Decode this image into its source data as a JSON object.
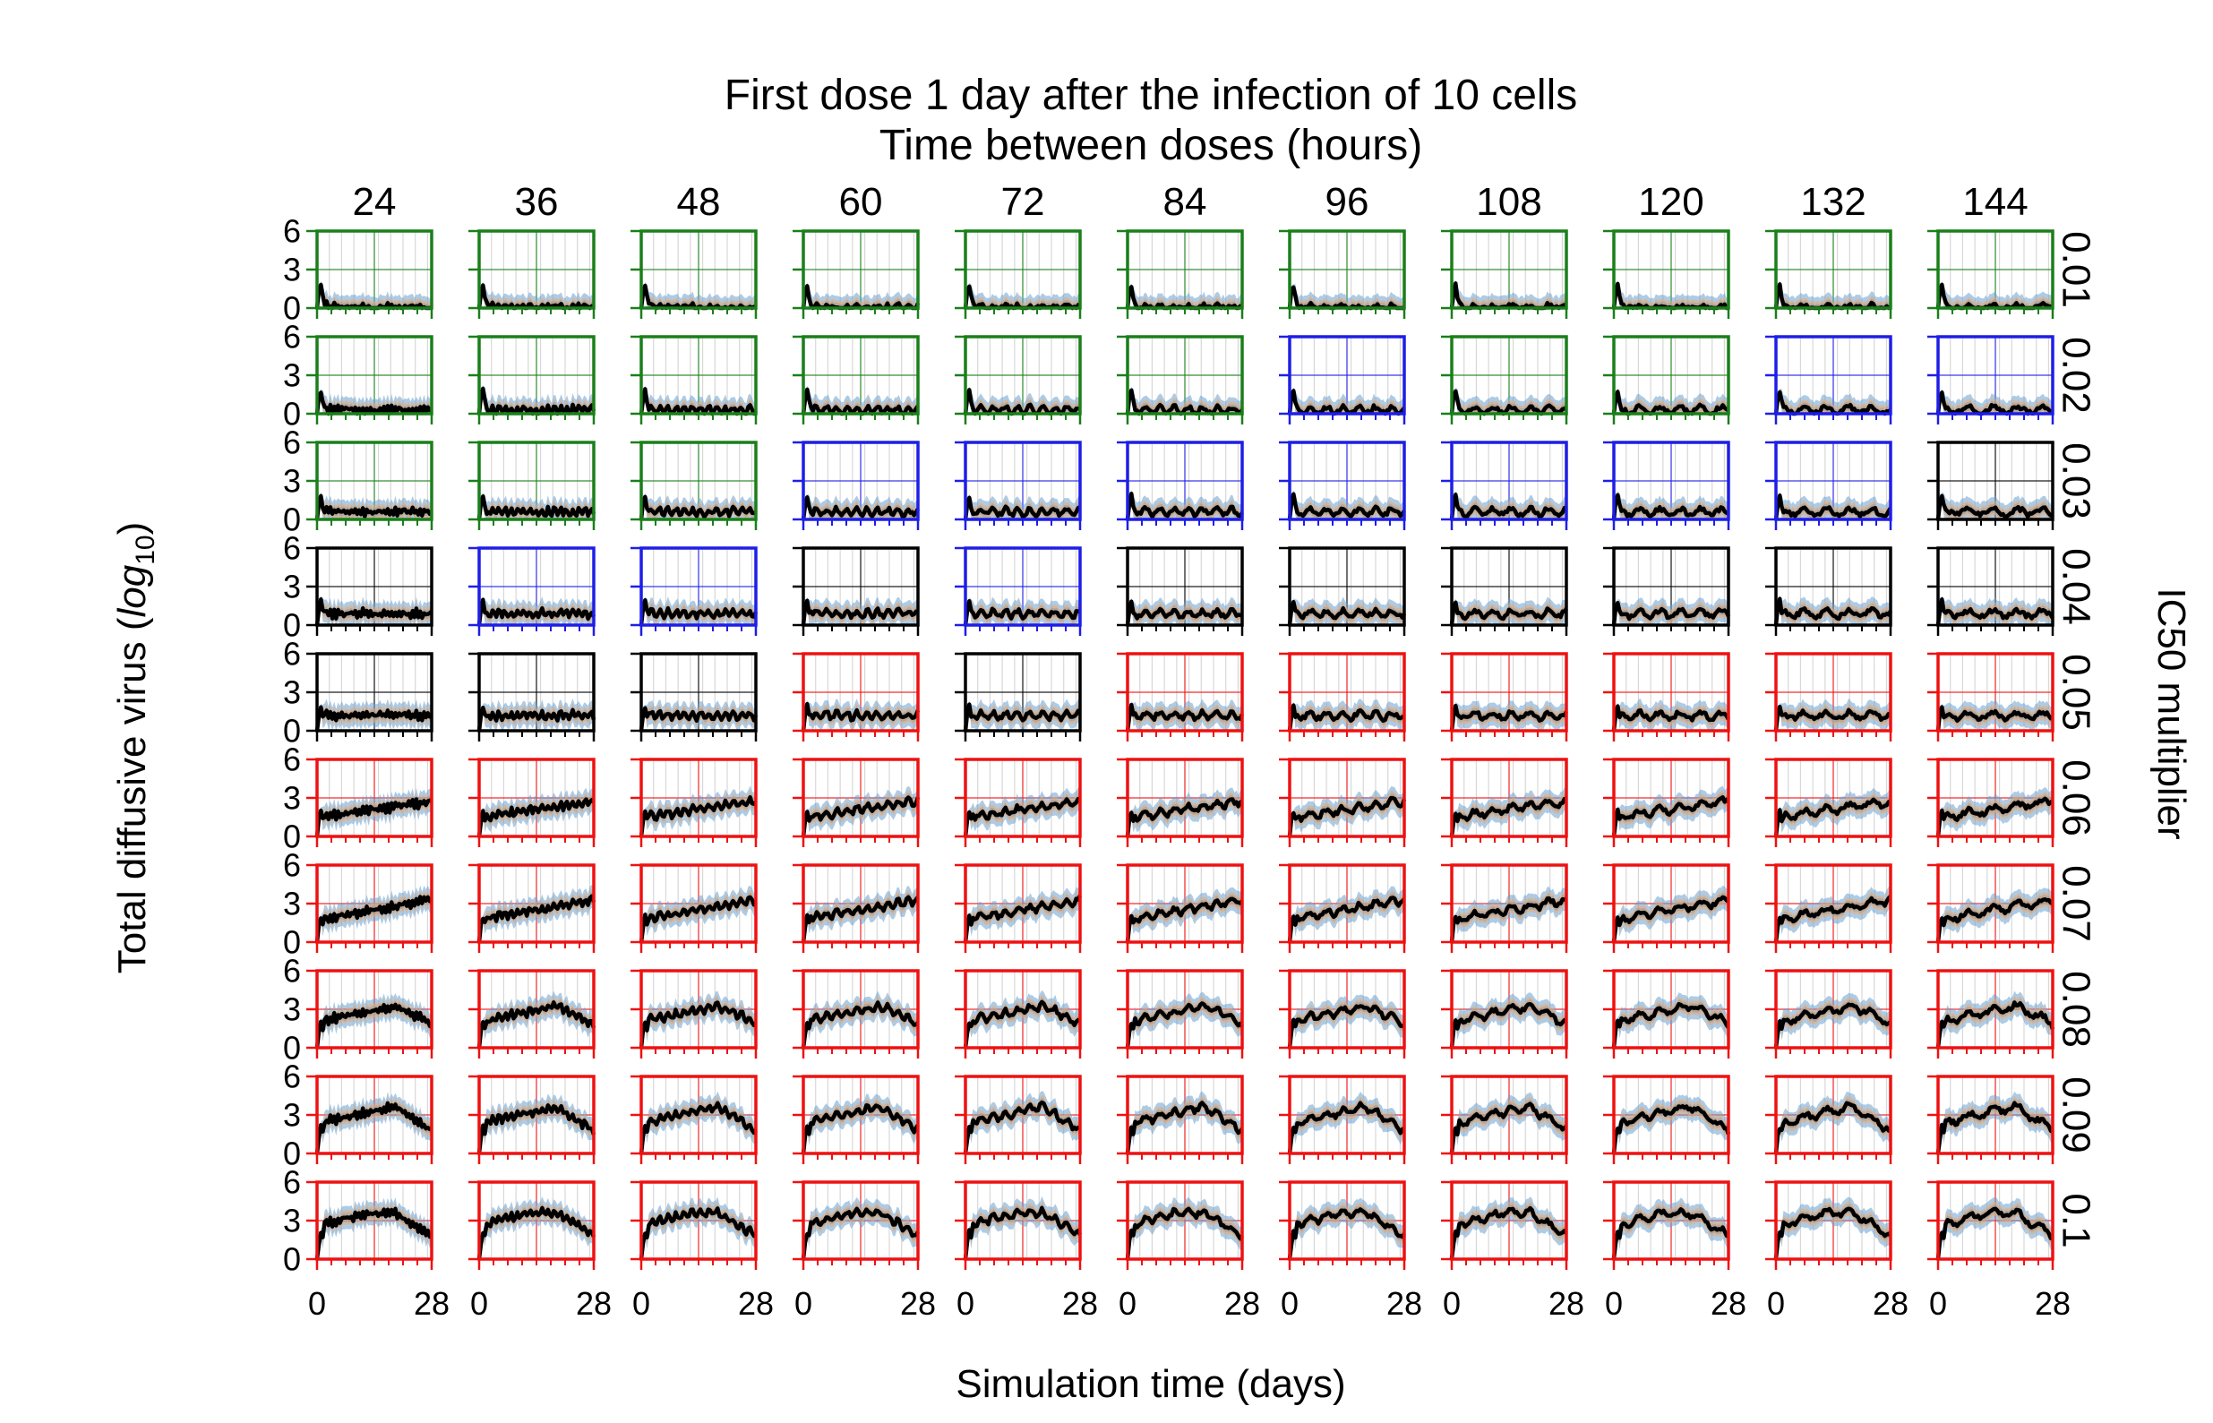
{
  "chart_data": {
    "type": "line",
    "title": "First dose 1 day after the infection of 10 cells",
    "subtitle": "Time between doses (hours)",
    "xlabel": "Simulation time (days)",
    "ylabel_prefix": "Total diffusive virus (",
    "ylabel_math": "log",
    "ylabel_sub": "10",
    "ylabel_suffix": ")",
    "right_label": "IC50 multiplier",
    "column_values": [
      "24",
      "36",
      "48",
      "60",
      "72",
      "84",
      "96",
      "108",
      "120",
      "132",
      "144"
    ],
    "row_values": [
      "0.01",
      "0.02",
      "0.03",
      "0.04",
      "0.05",
      "0.06",
      "0.07",
      "0.08",
      "0.09",
      "0.1"
    ],
    "xlim": [
      0,
      28
    ],
    "ylim": [
      0,
      6
    ],
    "xticks": [
      "0",
      "28"
    ],
    "yticks": [
      "0",
      "3",
      "6"
    ],
    "band_colors": [
      "#6aa0d0",
      "#f0a868",
      "#9a9a9a"
    ],
    "mean_line_color": "#000000",
    "outcome_colors": {
      "green": "#1a7f1a",
      "blue": "#1e1ee6",
      "black": "#000000",
      "red": "#ee1111"
    },
    "outcomes": [
      [
        "green",
        "green",
        "green",
        "green",
        "green",
        "green",
        "green",
        "green",
        "green",
        "green",
        "green"
      ],
      [
        "green",
        "green",
        "green",
        "green",
        "green",
        "green",
        "blue",
        "green",
        "green",
        "blue",
        "blue"
      ],
      [
        "green",
        "green",
        "green",
        "blue",
        "blue",
        "blue",
        "blue",
        "blue",
        "blue",
        "blue",
        "black"
      ],
      [
        "black",
        "blue",
        "blue",
        "black",
        "blue",
        "black",
        "black",
        "black",
        "black",
        "black",
        "black"
      ],
      [
        "black",
        "black",
        "black",
        "red",
        "black",
        "red",
        "red",
        "red",
        "red",
        "red",
        "red"
      ],
      [
        "red",
        "red",
        "red",
        "red",
        "red",
        "red",
        "red",
        "red",
        "red",
        "red",
        "red"
      ],
      [
        "red",
        "red",
        "red",
        "red",
        "red",
        "red",
        "red",
        "red",
        "red",
        "red",
        "red"
      ],
      [
        "red",
        "red",
        "red",
        "red",
        "red",
        "red",
        "red",
        "red",
        "red",
        "red",
        "red"
      ],
      [
        "red",
        "red",
        "red",
        "red",
        "red",
        "red",
        "red",
        "red",
        "red",
        "red",
        "red"
      ],
      [
        "red",
        "red",
        "red",
        "red",
        "red",
        "red",
        "red",
        "red",
        "red",
        "red",
        "red"
      ]
    ]
  }
}
